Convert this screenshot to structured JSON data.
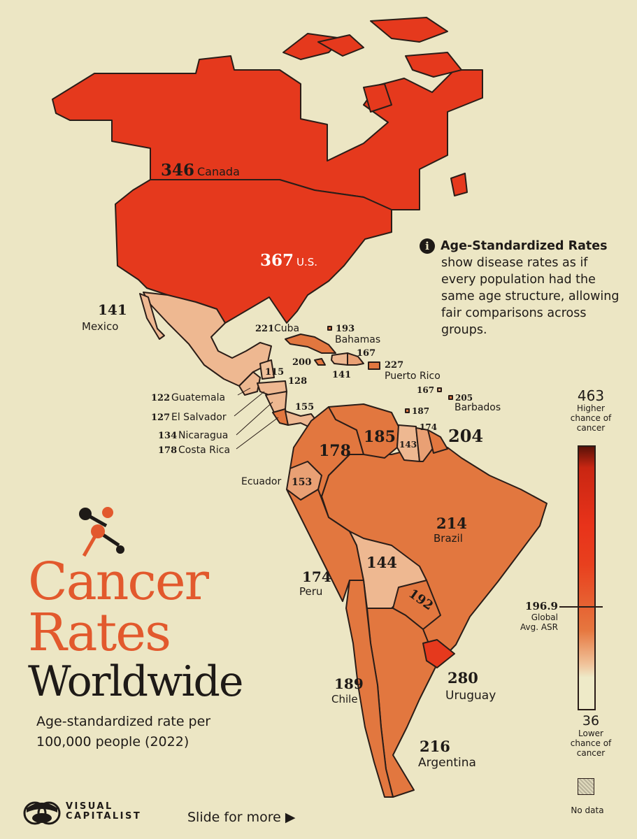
{
  "title": {
    "line1": "Cancer",
    "line2": "Rates",
    "line3": "Worldwide"
  },
  "subtitle": "Age-standardized rate per 100,000 people (2022)",
  "info": {
    "icon": "info-icon",
    "heading": "Age-Standardized Rates",
    "body": "show disease rates as if every population had the same age structure, allowing fair comparisons across groups."
  },
  "colors": {
    "background": "#ece6c4",
    "high": "#e5391d",
    "mid": "#e2773f",
    "low": "#eeb891",
    "title_accent": "#e2592d"
  },
  "countries": [
    {
      "name": "Canada",
      "value": "346"
    },
    {
      "name": "U.S.",
      "value": "367"
    },
    {
      "name": "Mexico",
      "value": "141"
    },
    {
      "name": "Cuba",
      "value": "221"
    },
    {
      "name": "Bahamas",
      "value": "193"
    },
    {
      "name": "",
      "value": "167"
    },
    {
      "name": "",
      "value": "200"
    },
    {
      "name": "",
      "value": "141"
    },
    {
      "name": "Puerto Rico",
      "value": "227"
    },
    {
      "name": "",
      "value": "167"
    },
    {
      "name": "Barbados",
      "value": "205"
    },
    {
      "name": "",
      "value": "187"
    },
    {
      "name": "",
      "value": "115"
    },
    {
      "name": "",
      "value": "128"
    },
    {
      "name": "Guatemala",
      "value": "122"
    },
    {
      "name": "El Salvador",
      "value": "127"
    },
    {
      "name": "Nicaragua",
      "value": "134"
    },
    {
      "name": "Costa Rica",
      "value": "178"
    },
    {
      "name": "",
      "value": "155"
    },
    {
      "name": "",
      "value": "178"
    },
    {
      "name": "",
      "value": "185"
    },
    {
      "name": "",
      "value": "143"
    },
    {
      "name": "",
      "value": "174"
    },
    {
      "name": "",
      "value": "204"
    },
    {
      "name": "Ecuador",
      "value": "153"
    },
    {
      "name": "Brazil",
      "value": "214"
    },
    {
      "name": "Peru",
      "value": "174"
    },
    {
      "name": "",
      "value": "144"
    },
    {
      "name": "",
      "value": "192"
    },
    {
      "name": "Chile",
      "value": "189"
    },
    {
      "name": "Uruguay",
      "value": "280"
    },
    {
      "name": "Argentina",
      "value": "216"
    }
  ],
  "legend": {
    "max": "463",
    "max_label": "Higher chance of cancer",
    "min": "36",
    "min_label": "Lower chance of cancer",
    "avg": "196.9",
    "avg_label": "Global Avg. ASR",
    "no_data": "No data"
  },
  "footer": {
    "brand_line1": "VISUAL",
    "brand_line2": "CAPITALIST",
    "slide": "Slide for more",
    "slide_icon": "play-triangle-icon"
  }
}
